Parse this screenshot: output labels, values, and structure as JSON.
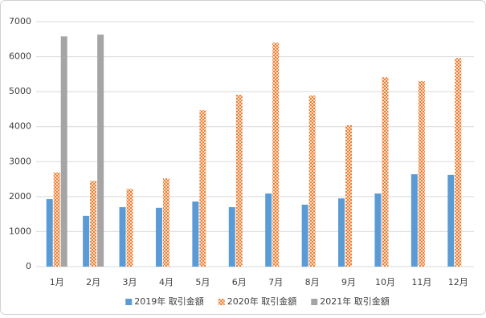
{
  "chart_data": {
    "type": "bar",
    "categories": [
      "1月",
      "2月",
      "3月",
      "4月",
      "5月",
      "6月",
      "7月",
      "8月",
      "9月",
      "10月",
      "11月",
      "12月"
    ],
    "series": [
      {
        "name": "2019年 取引金額",
        "color": "#5b9bd5",
        "values": [
          1930,
          1450,
          1700,
          1680,
          1860,
          1700,
          2090,
          1770,
          1950,
          2090,
          2640,
          2620
        ]
      },
      {
        "name": "2020年 取引金額",
        "color": "#ed7d31",
        "fill_pattern": "checker",
        "values": [
          2690,
          2450,
          2220,
          2520,
          4470,
          4910,
          6400,
          4890,
          4040,
          5410,
          5300,
          5960
        ]
      },
      {
        "name": "2021年 取引金額",
        "color": "#a5a5a5",
        "values": [
          6580,
          6630,
          null,
          null,
          null,
          null,
          null,
          null,
          null,
          null,
          null,
          null
        ]
      }
    ],
    "ylim": [
      0,
      7000
    ],
    "yticks": [
      0,
      1000,
      2000,
      3000,
      4000,
      5000,
      6000,
      7000
    ],
    "grid": true,
    "legend": "bottom"
  }
}
